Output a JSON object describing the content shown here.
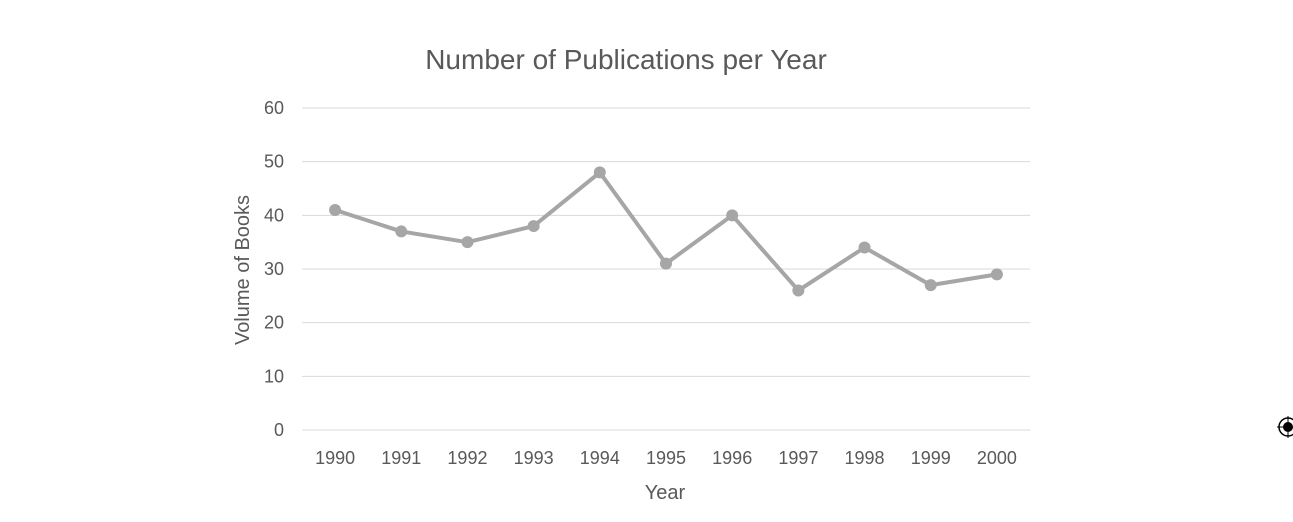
{
  "chart_data": {
    "type": "line",
    "title": "Number of Publications per Year",
    "xlabel": "Year",
    "ylabel": "Volume of Books",
    "categories": [
      "1990",
      "1991",
      "1992",
      "1993",
      "1994",
      "1995",
      "1996",
      "1997",
      "1998",
      "1999",
      "2000"
    ],
    "series": [
      {
        "values": [
          41,
          37,
          35,
          38,
          48,
          31,
          40,
          26,
          34,
          27,
          29
        ],
        "color": "#a6a6a6",
        "markers": true
      }
    ],
    "ylim": [
      0,
      60
    ],
    "yticks": [
      "0",
      "10",
      "20",
      "30",
      "40",
      "50",
      "60"
    ],
    "grid": "horizontal",
    "legend": "none"
  },
  "colors": {
    "text": "#595959",
    "grid": "#d9d9d9",
    "series": "#a6a6a6"
  },
  "icons": {
    "anchor": "object-anchor-handle-icon"
  }
}
